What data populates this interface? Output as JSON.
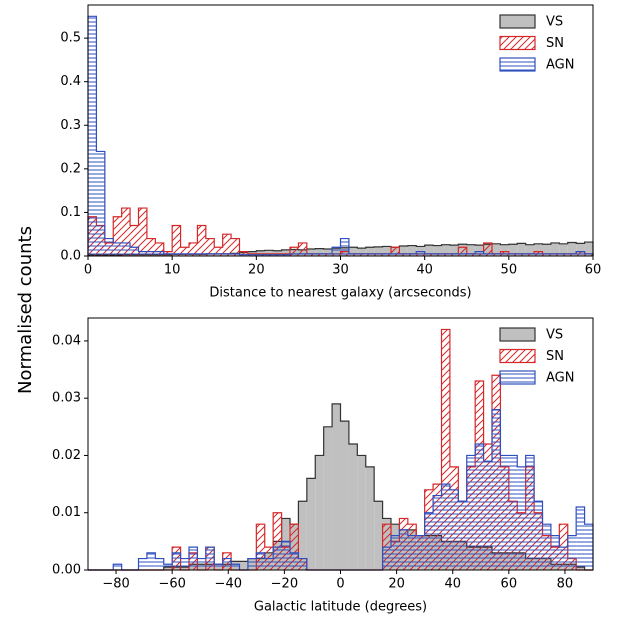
{
  "chart_data": [
    {
      "type": "histogram",
      "xlabel": "Distance to nearest galaxy (arcseconds)",
      "ylabel": "Normalised counts",
      "bins": [
        0,
        1,
        2,
        3,
        4,
        5,
        6,
        7,
        8,
        9,
        10,
        11,
        12,
        13,
        14,
        15,
        16,
        17,
        18,
        19,
        20,
        21,
        22,
        23,
        24,
        25,
        26,
        27,
        28,
        29,
        30,
        31,
        32,
        33,
        34,
        35,
        36,
        37,
        38,
        39,
        40,
        41,
        42,
        43,
        44,
        45,
        46,
        47,
        48,
        49,
        50,
        51,
        52,
        53,
        54,
        55,
        56,
        57,
        58,
        59,
        60
      ],
      "xlim": [
        0,
        60
      ],
      "xticks": [
        0,
        10,
        20,
        30,
        40,
        50,
        60
      ],
      "ylim": [
        0,
        0.576
      ],
      "yticks": [
        {
          "value": 0,
          "label": "0.0"
        },
        0.1,
        0.2,
        0.3,
        0.4,
        0.5
      ],
      "legend": "upper right",
      "series": [
        {
          "name": "VS",
          "color": "#c0c0c0",
          "edgecolor": "#333333",
          "hatch": "none",
          "values": [
            0.002,
            0.002,
            0.002,
            0.002,
            0.003,
            0.003,
            0.003,
            0.003,
            0.003,
            0.003,
            0.004,
            0.004,
            0.004,
            0.004,
            0.005,
            0.005,
            0.005,
            0.006,
            0.008,
            0.01,
            0.012,
            0.013,
            0.012,
            0.014,
            0.015,
            0.014,
            0.016,
            0.017,
            0.016,
            0.018,
            0.019,
            0.02,
            0.018,
            0.02,
            0.021,
            0.022,
            0.02,
            0.023,
            0.024,
            0.022,
            0.025,
            0.024,
            0.026,
            0.025,
            0.027,
            0.026,
            0.025,
            0.027,
            0.028,
            0.026,
            0.027,
            0.029,
            0.026,
            0.028,
            0.027,
            0.03,
            0.028,
            0.031,
            0.029,
            0.032
          ]
        },
        {
          "name": "SN",
          "color": "#d62728",
          "edgecolor": "#d62728",
          "hatch": "/",
          "values": [
            0.09,
            0.07,
            0.03,
            0.09,
            0.11,
            0.07,
            0.11,
            0.04,
            0.03,
            0.01,
            0.07,
            0.02,
            0.03,
            0.07,
            0.04,
            0.02,
            0.05,
            0.04,
            0.01,
            0.005,
            0.005,
            0.005,
            0.005,
            0.005,
            0.02,
            0.03,
            0.005,
            0.005,
            0.005,
            0.005,
            0.01,
            0.005,
            0.005,
            0.005,
            0.005,
            0.005,
            0.02,
            0.005,
            0.005,
            0.005,
            0.005,
            0.005,
            0.005,
            0.005,
            0.02,
            0.005,
            0.005,
            0.03,
            0.005,
            0.01,
            0.005,
            0.005,
            0.005,
            0.01,
            0.005,
            0.005,
            0.005,
            0.005,
            0.01,
            0.005
          ]
        },
        {
          "name": "AGN",
          "color": "#2f4fbf",
          "edgecolor": "#2f4fbf",
          "hatch": "-",
          "values": [
            0.55,
            0.24,
            0.04,
            0.03,
            0.03,
            0.02,
            0.01,
            0.01,
            0.01,
            0.005,
            0.005,
            0.005,
            0.005,
            0.005,
            0.005,
            0.005,
            0.005,
            0.005,
            0.003,
            0.003,
            0.003,
            0.003,
            0.003,
            0.003,
            0.005,
            0.005,
            0.005,
            0.005,
            0.005,
            0.02,
            0.04,
            0.005,
            0.005,
            0.005,
            0.005,
            0.005,
            0.005,
            0.005,
            0.005,
            0.01,
            0.005,
            0.005,
            0.005,
            0.005,
            0.005,
            0.005,
            0.01,
            0.005,
            0.005,
            0.005,
            0.005,
            0.005,
            0.005,
            0.005,
            0.005,
            0.005,
            0.005,
            0.005,
            0.01,
            0.005
          ]
        }
      ]
    },
    {
      "type": "histogram",
      "xlabel": "Galactic latitude (degrees)",
      "bins": [
        -90,
        -87,
        -84,
        -81,
        -78,
        -75,
        -72,
        -69,
        -66,
        -63,
        -60,
        -57,
        -54,
        -51,
        -48,
        -45,
        -42,
        -39,
        -36,
        -33,
        -30,
        -27,
        -24,
        -21,
        -18,
        -15,
        -12,
        -9,
        -6,
        -3,
        0,
        3,
        6,
        9,
        12,
        15,
        18,
        21,
        24,
        27,
        30,
        33,
        36,
        39,
        42,
        45,
        48,
        51,
        54,
        57,
        60,
        63,
        66,
        69,
        72,
        75,
        78,
        81,
        84,
        87,
        90
      ],
      "xlim": [
        -90,
        90
      ],
      "xticks": [
        {
          "value": -80,
          "label": "−80"
        },
        {
          "value": -60,
          "label": "−60"
        },
        {
          "value": -40,
          "label": "−40"
        },
        {
          "value": -20,
          "label": "−20"
        },
        0,
        20,
        40,
        60,
        80
      ],
      "ylim": [
        0,
        0.044
      ],
      "yticks": [
        {
          "value": 0,
          "label": "0.00"
        },
        0.01,
        0.02,
        0.03,
        0.04
      ],
      "legend": "upper right",
      "series": [
        {
          "name": "VS",
          "color": "#c0c0c0",
          "edgecolor": "#333333",
          "hatch": "none",
          "values": [
            0,
            0,
            0,
            0,
            0,
            0,
            0,
            0,
            0,
            0.0005,
            0.0005,
            0.0005,
            0.001,
            0.001,
            0.001,
            0.001,
            0.001,
            0.0015,
            0.0015,
            0.002,
            0.002,
            0.003,
            0.005,
            0.009,
            0.008,
            0.012,
            0.016,
            0.02,
            0.025,
            0.029,
            0.026,
            0.022,
            0.02,
            0.018,
            0.012,
            0.009,
            0.008,
            0.007,
            0.007,
            0.006,
            0.006,
            0.006,
            0.005,
            0.005,
            0.005,
            0.004,
            0.004,
            0.004,
            0.003,
            0.003,
            0.003,
            0.003,
            0.002,
            0.002,
            0.002,
            0.001,
            0.001,
            0.001,
            0.0005,
            0
          ]
        },
        {
          "name": "SN",
          "color": "#d62728",
          "edgecolor": "#d62728",
          "hatch": "/",
          "values": [
            0,
            0,
            0,
            0,
            0,
            0,
            0,
            0,
            0,
            0,
            0.004,
            0,
            0.003,
            0,
            0.004,
            0,
            0.003,
            0,
            0,
            0,
            0.008,
            0.004,
            0.01,
            0.004,
            0.008,
            0.002,
            0,
            0,
            0,
            0,
            0,
            0,
            0,
            0,
            0,
            0.008,
            0.005,
            0.009,
            0.008,
            0.006,
            0.014,
            0.015,
            0.042,
            0.018,
            0.012,
            0.018,
            0.033,
            0.022,
            0.034,
            0.018,
            0.012,
            0.01,
            0.018,
            0.01,
            0.006,
            0.004,
            0.008,
            0.002,
            0,
            0
          ]
        },
        {
          "name": "AGN",
          "color": "#2f4fbf",
          "edgecolor": "#2f4fbf",
          "hatch": "-",
          "values": [
            0,
            0,
            0,
            0.001,
            0,
            0,
            0.002,
            0.003,
            0.002,
            0.001,
            0.003,
            0.002,
            0.004,
            0.002,
            0.004,
            0.001,
            0.002,
            0.001,
            0,
            0.002,
            0.003,
            0.002,
            0.004,
            0.005,
            0.003,
            0.002,
            0,
            0,
            0,
            0,
            0,
            0,
            0,
            0,
            0,
            0.004,
            0.006,
            0.007,
            0.006,
            0.006,
            0.01,
            0.013,
            0.015,
            0.014,
            0.012,
            0.02,
            0.022,
            0.019,
            0.028,
            0.02,
            0.02,
            0.018,
            0.02,
            0.012,
            0.008,
            0.006,
            0.004,
            0.006,
            0.011,
            0.008
          ]
        }
      ]
    }
  ]
}
